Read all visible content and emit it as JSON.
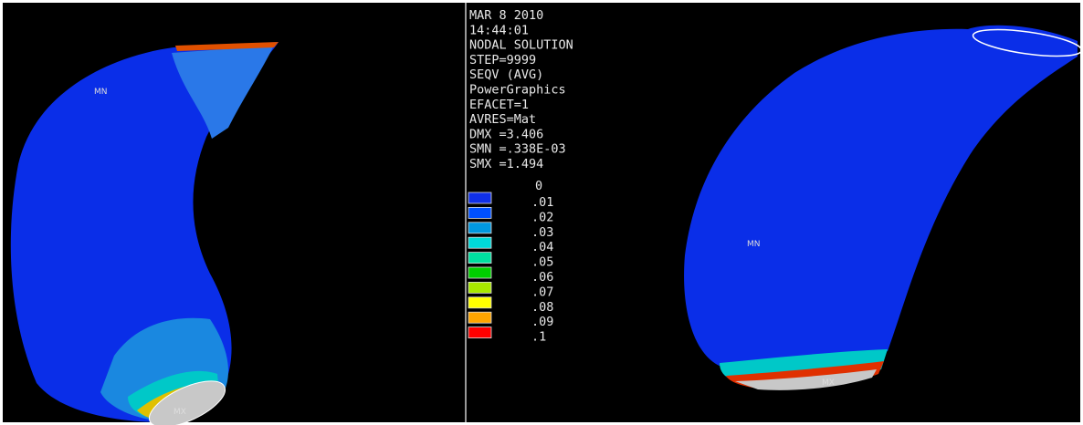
{
  "header_lines": [
    "MAR  8 2010",
    "14:44:01",
    "NODAL SOLUTION",
    "STEP=9999",
    "SEQV      (AVG)",
    "PowerGraphics",
    "EFACET=1",
    "AVRES=Mat",
    "DMX =3.406",
    "SMN =.338E-03",
    "SMX =1.494"
  ],
  "legend": {
    "start_label": "0",
    "items": [
      {
        "label": ".01",
        "color": "#1030e8"
      },
      {
        "label": ".02",
        "color": "#0050ff"
      },
      {
        "label": ".03",
        "color": "#0098e0"
      },
      {
        "label": ".04",
        "color": "#00d8d8"
      },
      {
        "label": ".05",
        "color": "#00e0a0"
      },
      {
        "label": ".06",
        "color": "#00d000"
      },
      {
        "label": ".07",
        "color": "#a8e800"
      },
      {
        "label": ".08",
        "color": "#ffff00"
      },
      {
        "label": ".09",
        "color": "#ffa500"
      },
      {
        "label": ".1",
        "color": "#ff0000"
      }
    ]
  },
  "left_view": {
    "min_label": "MN",
    "max_label": "MX"
  },
  "right_view": {
    "min_label": "MN",
    "max_label": "MX"
  }
}
